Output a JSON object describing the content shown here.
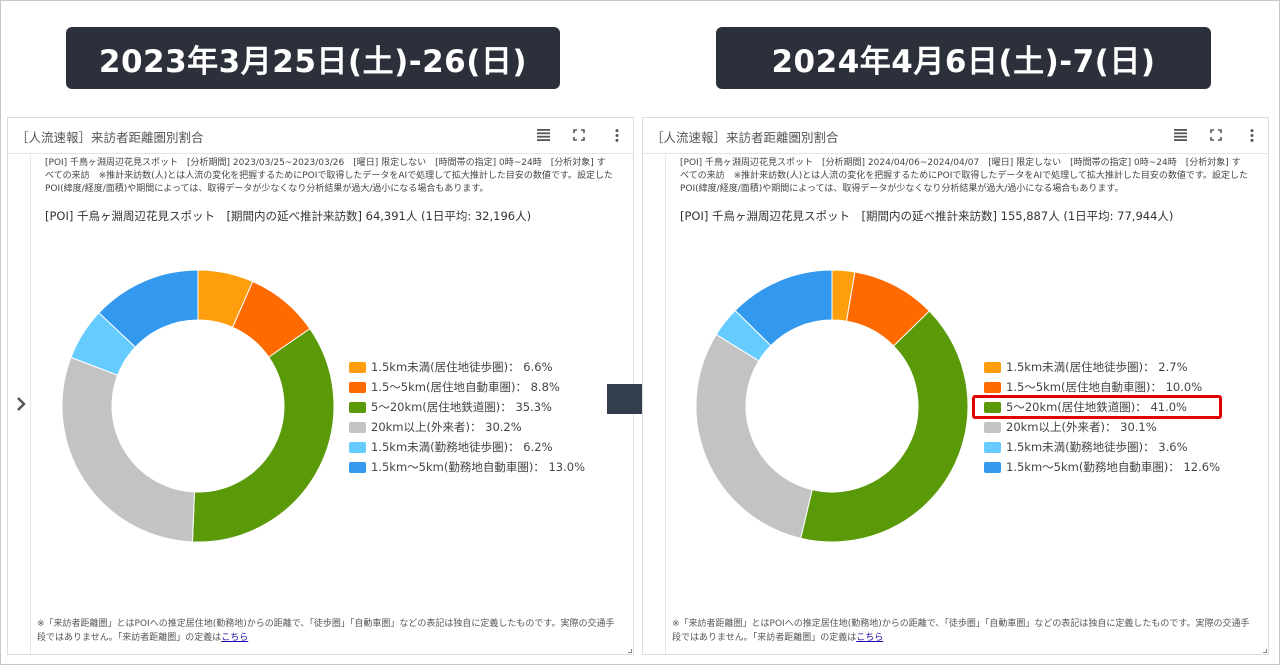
{
  "banners": {
    "left": "2023年3月25日(土)-26(日)",
    "right": "2024年4月6日(土)-7(日)"
  },
  "panel_title": "［人流速報］来訪者距離圏別割合",
  "icons": {
    "menu": "list-icon",
    "expand": "expand-icon",
    "more": "more-vertical-icon",
    "side": "chevron-right-icon",
    "arrow": "arrow-right-icon"
  },
  "left_panel": {
    "info": "[POI] 千鳥ヶ淵周辺花見スポット　[分析期間] 2023/03/25~2023/03/26　[曜日] 限定しない　[時間帯の指定] 0時~24時　[分析対象] すべての来訪　※推計来訪数(人)とは人流の変化を把握するためにPOIで取得したデータをAIで処理して拡大推計した目安の数値です。設定したPOI(緯度/経度/面積)や期間によっては、取得データが少なくなり分析結果が過大/過小になる場合もあります。",
    "summary": "[POI] 千鳥ヶ淵周辺花見スポット　[期間内の延べ推計来訪数] 64,391人 (1日平均: 32,196人)",
    "legend": [
      "1.5km未満(居住地徒歩圏)：  6.6%",
      "1.5〜5km(居住地自動車圏)：  8.8%",
      "5〜20km(居住地鉄道圏)：  35.3%",
      "20km以上(外来者)：  30.2%",
      "1.5km未満(勤務地徒歩圏)：  6.2%",
      "1.5km〜5km(勤務地自動車圏)：  13.0%"
    ],
    "footnote_text": "※「来訪者距離圏」とはPOIへの推定居住地(勤務地)からの距離で、「徒歩圏」「自動車圏」などの表記は独自に定義したものです。実際の交通手段ではありません。「来訪者距離圏」の定義は",
    "footnote_link": "こちら"
  },
  "right_panel": {
    "info": "[POI] 千鳥ヶ淵周辺花見スポット　[分析期間] 2024/04/06~2024/04/07　[曜日] 限定しない　[時間帯の指定] 0時~24時　[分析対象] すべての来訪　※推計来訪数(人)とは人流の変化を把握するためにPOIで取得したデータをAIで処理して拡大推計した目安の数値です。設定したPOI(緯度/経度/面積)や期間によっては、取得データが少なくなり分析結果が過大/過小になる場合もあります。",
    "summary": "[POI] 千鳥ヶ淵周辺花見スポット　[期間内の延べ推計来訪数] 155,887人 (1日平均: 77,944人)",
    "legend": [
      "1.5km未満(居住地徒歩圏)：  2.7%",
      "1.5〜5km(居住地自動車圏)：  10.0%",
      "5〜20km(居住地鉄道圏)：  41.0%",
      "20km以上(外来者)：  30.1%",
      "1.5km未満(勤務地徒歩圏)：  3.6%",
      "1.5km〜5km(勤務地自動車圏)：  12.6%"
    ],
    "footnote_text": "※「来訪者距離圏」とはPOIへの推定居住地(勤務地)からの距離で、「徒歩圏」「自動車圏」などの表記は独自に定義したものです。実際の交通手段ではありません。「来訪者距離圏」の定義は",
    "footnote_link": "こちら"
  },
  "colors": [
    "#ff9e0d",
    "#ff6a00",
    "#5a9a08",
    "#c3c3c3",
    "#66ccff",
    "#3399ee"
  ],
  "chart_data": [
    {
      "type": "pie",
      "categories": [
        "1.5km未満(居住地徒歩圏)",
        "1.5〜5km(居住地自動車圏)",
        "5〜20km(居住地鉄道圏)",
        "20km以上(外来者)",
        "1.5km未満(勤務地徒歩圏)",
        "1.5km〜5km(勤務地自動車圏)"
      ],
      "values": [
        6.6,
        8.8,
        35.3,
        30.2,
        6.2,
        13.0
      ],
      "legend_position": "right"
    },
    {
      "type": "pie",
      "categories": [
        "1.5km未満(居住地徒歩圏)",
        "1.5〜5km(居住地自動車圏)",
        "5〜20km(居住地鉄道圏)",
        "20km以上(外来者)",
        "1.5km未満(勤務地徒歩圏)",
        "1.5km〜5km(勤務地自動車圏)"
      ],
      "values": [
        2.7,
        10.0,
        41.0,
        30.1,
        3.6,
        12.6
      ],
      "legend_position": "right",
      "highlighted_category": "5〜20km(居住地鉄道圏)"
    }
  ]
}
